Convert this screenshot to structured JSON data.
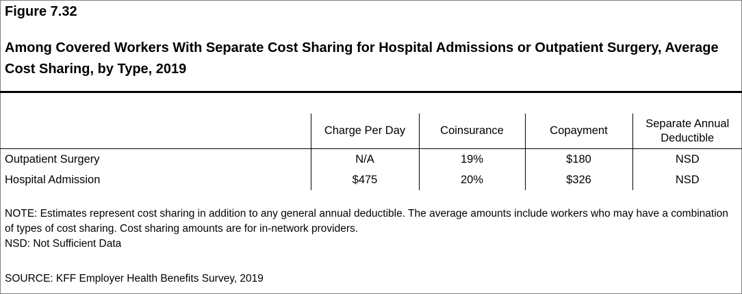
{
  "figure_number": "Figure 7.32",
  "title": "Among Covered Workers With Separate Cost Sharing for Hospital Admissions or Outpatient Surgery, Average Cost Sharing, by Type, 2019",
  "table": {
    "columns": [
      "",
      "Charge Per Day",
      "Coinsurance",
      "Copayment",
      "Separate Annual Deductible"
    ],
    "rows": [
      {
        "label": "Outpatient Surgery",
        "cells": [
          "N/A",
          "19%",
          "$180",
          "NSD"
        ]
      },
      {
        "label": "Hospital Admission",
        "cells": [
          "$475",
          "20%",
          "$326",
          "NSD"
        ]
      }
    ]
  },
  "notes": {
    "note": "NOTE: Estimates represent cost sharing in addition to any general annual deductible. The average amounts include workers who may have a combination of types of cost sharing. Cost sharing amounts are for in-network providers.",
    "nsd": "NSD: Not Sufficient Data",
    "source": "SOURCE: KFF Employer Health Benefits Survey, 2019"
  }
}
